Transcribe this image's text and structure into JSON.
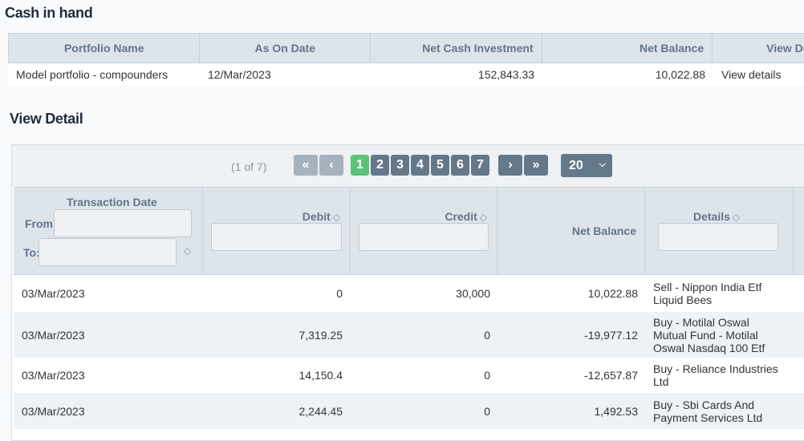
{
  "cash_title": "Cash in hand",
  "summary": {
    "headers": [
      "Portfolio Name",
      "As On Date",
      "Net Cash Investment",
      "Net Balance",
      "View Details"
    ],
    "row": {
      "portfolio_name": "Model portfolio - compounders",
      "as_on_date": "12/Mar/2023",
      "net_cash_investment": "152,843.33",
      "net_balance": "10,022.88",
      "view_details": "View details"
    }
  },
  "detail_title": "View Detail",
  "paginator": {
    "summary": "(1 of 7)",
    "pages": [
      "1",
      "2",
      "3",
      "4",
      "5",
      "6",
      "7"
    ],
    "active_page": "1",
    "rows_per_page": "20"
  },
  "detail_table": {
    "headers": {
      "transaction_date": "Transaction Date",
      "from": "From:",
      "to": "To:",
      "debit": "Debit",
      "credit": "Credit",
      "net_balance": "Net Balance",
      "details": "Details"
    },
    "rows": [
      {
        "date": "03/Mar/2023",
        "debit": "0",
        "credit": "30,000",
        "net_balance": "10,022.88",
        "details": "Sell - Nippon India Etf Liquid Bees"
      },
      {
        "date": "03/Mar/2023",
        "debit": "7,319.25",
        "credit": "0",
        "net_balance": "-19,977.12",
        "details": "Buy - Motilal Oswal Mutual Fund - Motilal Oswal Nasdaq 100 Etf"
      },
      {
        "date": "03/Mar/2023",
        "debit": "14,150.4",
        "credit": "0",
        "net_balance": "-12,657.87",
        "details": "Buy - Reliance Industries Ltd"
      },
      {
        "date": "03/Mar/2023",
        "debit": "2,244.45",
        "credit": "0",
        "net_balance": "1,492.53",
        "details": "Buy - Sbi Cards And Payment Services Ltd"
      }
    ]
  },
  "icons": [
    "first-page-icon",
    "prev-page-icon",
    "next-page-icon",
    "last-page-icon",
    "chevron-down-icon",
    "sort-icon"
  ]
}
